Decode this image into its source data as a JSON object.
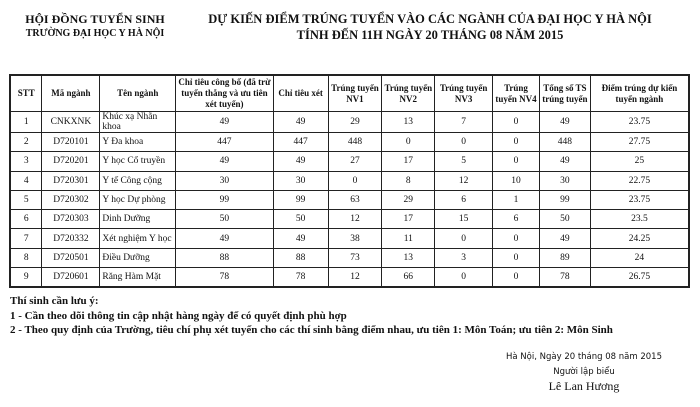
{
  "header": {
    "org_line1": "HỘI ĐỒNG TUYỂN SINH",
    "org_line2": "TRƯỜNG ĐẠI HỌC Y HÀ NỘI",
    "title_line1": "DỰ KIẾN ĐIỂM TRÚNG TUYỂN VÀO CÁC NGÀNH CỦA ĐẠI HỌC Y HÀ NỘI",
    "title_line2": "TÍNH ĐẾN 11H NGÀY 20 THÁNG 08 NĂM 2015"
  },
  "table": {
    "columns": [
      "STT",
      "Mã ngành",
      "Tên ngành",
      "Chỉ tiêu công bố (đã trừ tuyển thẳng và ưu tiên xét tuyển)",
      "Chỉ tiêu xét",
      "Trúng tuyển NV1",
      "Trúng tuyển NV2",
      "Trúng tuyển NV3",
      "Trúng tuyển NV4",
      "Tổng số TS trúng tuyển",
      "Điểm trúng dự kiến tuyển ngành"
    ],
    "rows": [
      [
        "1",
        "CNKXNK",
        "Khúc xạ Nhãn khoa",
        "49",
        "49",
        "29",
        "13",
        "7",
        "0",
        "49",
        "23.75"
      ],
      [
        "2",
        "D720101",
        "Y Đa khoa",
        "447",
        "447",
        "448",
        "0",
        "0",
        "0",
        "448",
        "27.75"
      ],
      [
        "3",
        "D720201",
        "Y học Cổ truyền",
        "49",
        "49",
        "27",
        "17",
        "5",
        "0",
        "49",
        "25"
      ],
      [
        "4",
        "D720301",
        "Y tế Công cộng",
        "30",
        "30",
        "0",
        "8",
        "12",
        "10",
        "30",
        "22.75"
      ],
      [
        "5",
        "D720302",
        "Y học Dự phòng",
        "99",
        "99",
        "63",
        "29",
        "6",
        "1",
        "99",
        "23.75"
      ],
      [
        "6",
        "D720303",
        "Dinh Dưỡng",
        "50",
        "50",
        "12",
        "17",
        "15",
        "6",
        "50",
        "23.5"
      ],
      [
        "7",
        "D720332",
        "Xét nghiệm Y học",
        "49",
        "49",
        "38",
        "11",
        "0",
        "0",
        "49",
        "24.25"
      ],
      [
        "8",
        "D720501",
        "Điều Dưỡng",
        "88",
        "88",
        "73",
        "13",
        "3",
        "0",
        "89",
        "24"
      ],
      [
        "9",
        "D720601",
        "Răng Hàm Mặt",
        "78",
        "78",
        "12",
        "66",
        "0",
        "0",
        "78",
        "26.75"
      ]
    ]
  },
  "notes": {
    "heading": "Thí sinh cần lưu ý:",
    "items": [
      "1 - Cần theo dõi thông tin cập nhật hàng ngày để có quyết định phù hợp",
      "2 - Theo quy định của Trường, tiêu chí phụ xét tuyển cho các thí sinh bằng điểm nhau, ưu tiên 1: Môn Toán; ưu tiên 2: Môn Sinh"
    ]
  },
  "signature": {
    "place_date": "Hà Nội, Ngày 20 tháng 08 năm 2015",
    "role": "Người lập biểu",
    "name": "Lê Lan Hương"
  }
}
